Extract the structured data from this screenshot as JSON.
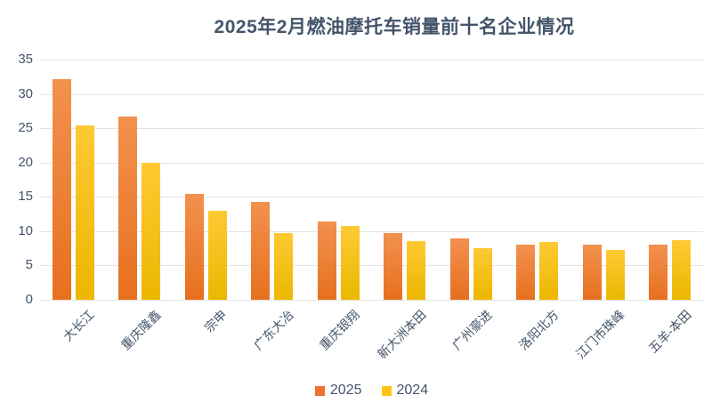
{
  "title": "2025年2月燃油摩托车销量前十名企业情况",
  "colors": {
    "text": "#44546A",
    "gridline": "#E4E4E4",
    "background": "#FFFFFF"
  },
  "legend": {
    "position": "bottom",
    "items": [
      {
        "label": "2025",
        "swatch_color": "#ED7031"
      },
      {
        "label": "2024",
        "swatch_color": "#FFC414"
      }
    ]
  },
  "chart_data": {
    "type": "bar",
    "title": "2025年2月燃油摩托车销量前十名企业情况",
    "categories": [
      "大长江",
      "重庆隆鑫",
      "宗申",
      "广东大冶",
      "重庆银翔",
      "新大洲本田",
      "广州豪进",
      "洛阳北方",
      "江门市珠峰",
      "五羊-本田"
    ],
    "series": [
      {
        "name": "2025",
        "values": [
          32.1,
          26.7,
          15.4,
          14.2,
          11.4,
          9.7,
          9.0,
          8.0,
          8.1,
          8.0
        ],
        "gradient_top": "#F2914F",
        "gradient_bottom": "#E7701E",
        "legend_color": "#ED7031"
      },
      {
        "name": "2024",
        "values": [
          25.4,
          20.0,
          13.0,
          9.7,
          10.7,
          8.6,
          7.5,
          8.4,
          7.2,
          8.7
        ],
        "gradient_top": "#FFC933",
        "gradient_bottom": "#EBB700",
        "legend_color": "#FFC414"
      }
    ],
    "xlabel": "",
    "ylabel": "",
    "ylim": [
      0,
      35
    ],
    "yticks": [
      0,
      5,
      10,
      15,
      20,
      25,
      30,
      35
    ],
    "grid": true,
    "x_tick_rotation": 45,
    "legend_position": "bottom"
  }
}
